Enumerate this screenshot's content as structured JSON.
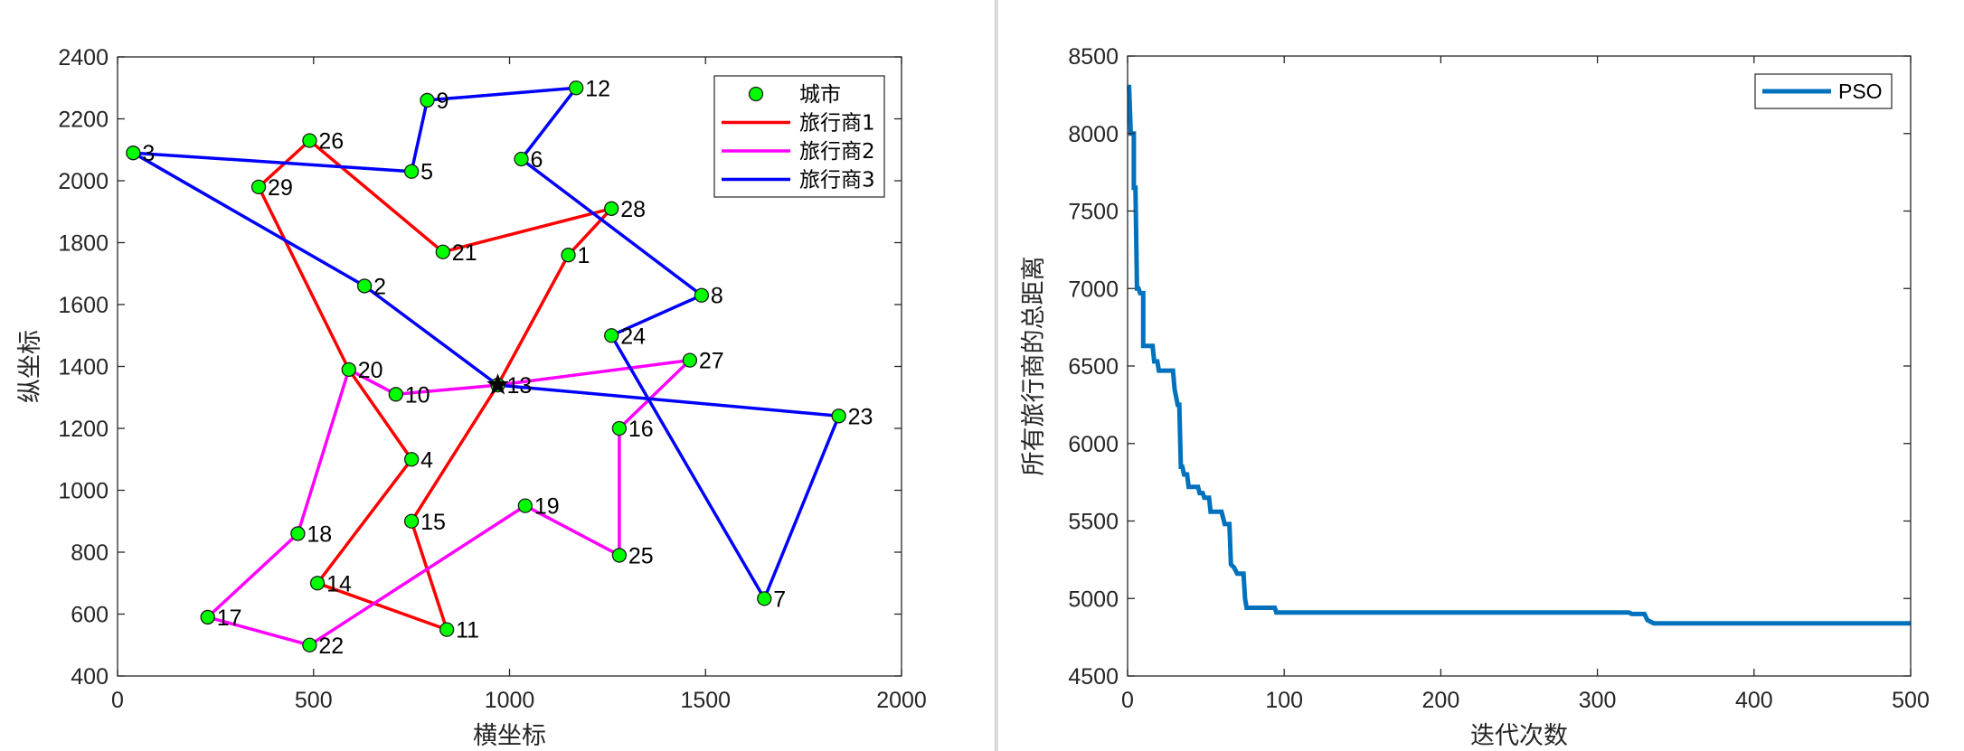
{
  "charts": {
    "tsp": {
      "type": "scatter",
      "xlabel": "横坐标",
      "ylabel": "纵坐标",
      "xlim": [
        0,
        2000
      ],
      "ylim": [
        400,
        2400
      ],
      "xticks": [
        0,
        500,
        1000,
        1500,
        2000
      ],
      "yticks": [
        400,
        600,
        800,
        1000,
        1200,
        1400,
        1600,
        1800,
        2000,
        2200,
        2400
      ],
      "grid": false,
      "legend_position": "top-right",
      "legend": [
        {
          "label": "城市",
          "kind": "marker",
          "color": "#00ff00"
        },
        {
          "label": "旅行商1",
          "kind": "line",
          "color": "#ff0000"
        },
        {
          "label": "旅行商2",
          "kind": "line",
          "color": "#ff00ff"
        },
        {
          "label": "旅行商3",
          "kind": "line",
          "color": "#0000ff"
        }
      ],
      "cities": [
        {
          "id": "1",
          "x": 1150,
          "y": 1760
        },
        {
          "id": "2",
          "x": 630,
          "y": 1660
        },
        {
          "id": "3",
          "x": 40,
          "y": 2090
        },
        {
          "id": "4",
          "x": 750,
          "y": 1100
        },
        {
          "id": "5",
          "x": 750,
          "y": 2030
        },
        {
          "id": "6",
          "x": 1030,
          "y": 2070
        },
        {
          "id": "7",
          "x": 1650,
          "y": 650
        },
        {
          "id": "8",
          "x": 1490,
          "y": 1630
        },
        {
          "id": "9",
          "x": 790,
          "y": 2260
        },
        {
          "id": "10",
          "x": 710,
          "y": 1310
        },
        {
          "id": "11",
          "x": 840,
          "y": 550
        },
        {
          "id": "12",
          "x": 1170,
          "y": 2300
        },
        {
          "id": "13",
          "x": 970,
          "y": 1340
        },
        {
          "id": "14",
          "x": 510,
          "y": 700
        },
        {
          "id": "15",
          "x": 750,
          "y": 900
        },
        {
          "id": "16",
          "x": 1280,
          "y": 1200
        },
        {
          "id": "17",
          "x": 230,
          "y": 590
        },
        {
          "id": "18",
          "x": 460,
          "y": 860
        },
        {
          "id": "19",
          "x": 1040,
          "y": 950
        },
        {
          "id": "20",
          "x": 590,
          "y": 1390
        },
        {
          "id": "21",
          "x": 830,
          "y": 1770
        },
        {
          "id": "22",
          "x": 490,
          "y": 500
        },
        {
          "id": "23",
          "x": 1840,
          "y": 1240
        },
        {
          "id": "24",
          "x": 1260,
          "y": 1500
        },
        {
          "id": "25",
          "x": 1280,
          "y": 790
        },
        {
          "id": "26",
          "x": 490,
          "y": 2130
        },
        {
          "id": "27",
          "x": 1460,
          "y": 1420
        },
        {
          "id": "28",
          "x": 1260,
          "y": 1910
        },
        {
          "id": "29",
          "x": 360,
          "y": 1980
        }
      ],
      "depot": {
        "x": 970,
        "y": 1340
      },
      "routes": [
        {
          "name": "旅行商1",
          "color": "#ff0000",
          "path": [
            "13",
            "1",
            "28",
            "21",
            "26",
            "29",
            "20",
            "4",
            "14",
            "11",
            "15",
            "13"
          ]
        },
        {
          "name": "旅行商2",
          "color": "#ff00ff",
          "path": [
            "13",
            "10",
            "20",
            "18",
            "17",
            "22",
            "19",
            "25",
            "16",
            "27",
            "13"
          ]
        },
        {
          "name": "旅行商3",
          "color": "#0000ff",
          "path": [
            "13",
            "2",
            "3",
            "5",
            "9",
            "12",
            "6",
            "8",
            "24",
            "7",
            "23",
            "13"
          ]
        }
      ]
    },
    "pso": {
      "type": "line",
      "xlabel": "迭代次数",
      "ylabel": "所有旅行商的总距离",
      "xlim": [
        0,
        500
      ],
      "ylim": [
        4500,
        8500
      ],
      "xticks": [
        0,
        100,
        200,
        300,
        400,
        500
      ],
      "yticks": [
        4500,
        5000,
        5500,
        6000,
        6500,
        7000,
        7500,
        8000,
        8500
      ],
      "grid": false,
      "legend_position": "top-right",
      "series": [
        {
          "name": "PSO",
          "color": "#0072bd",
          "points": [
            [
              0,
              8300
            ],
            [
              1,
              8300
            ],
            [
              2,
              8000
            ],
            [
              4,
              8000
            ],
            [
              4,
              7650
            ],
            [
              5,
              7650
            ],
            [
              6,
              7000
            ],
            [
              7,
              7000
            ],
            [
              8,
              6970
            ],
            [
              10,
              6970
            ],
            [
              10,
              6630
            ],
            [
              11,
              6630
            ],
            [
              16,
              6630
            ],
            [
              17,
              6530
            ],
            [
              19,
              6530
            ],
            [
              20,
              6470
            ],
            [
              29,
              6470
            ],
            [
              30,
              6350
            ],
            [
              31,
              6300
            ],
            [
              32,
              6250
            ],
            [
              33,
              6250
            ],
            [
              34,
              5850
            ],
            [
              35,
              5850
            ],
            [
              36,
              5800
            ],
            [
              38,
              5800
            ],
            [
              39,
              5720
            ],
            [
              45,
              5720
            ],
            [
              46,
              5680
            ],
            [
              48,
              5680
            ],
            [
              49,
              5650
            ],
            [
              52,
              5650
            ],
            [
              53,
              5560
            ],
            [
              60,
              5560
            ],
            [
              62,
              5480
            ],
            [
              65,
              5480
            ],
            [
              66,
              5220
            ],
            [
              68,
              5200
            ],
            [
              70,
              5160
            ],
            [
              74,
              5160
            ],
            [
              75,
              5000
            ],
            [
              76,
              4940
            ],
            [
              94,
              4940
            ],
            [
              95,
              4910
            ],
            [
              320,
              4910
            ],
            [
              322,
              4900
            ],
            [
              330,
              4900
            ],
            [
              332,
              4860
            ],
            [
              336,
              4840
            ],
            [
              500,
              4840
            ]
          ]
        }
      ]
    }
  }
}
